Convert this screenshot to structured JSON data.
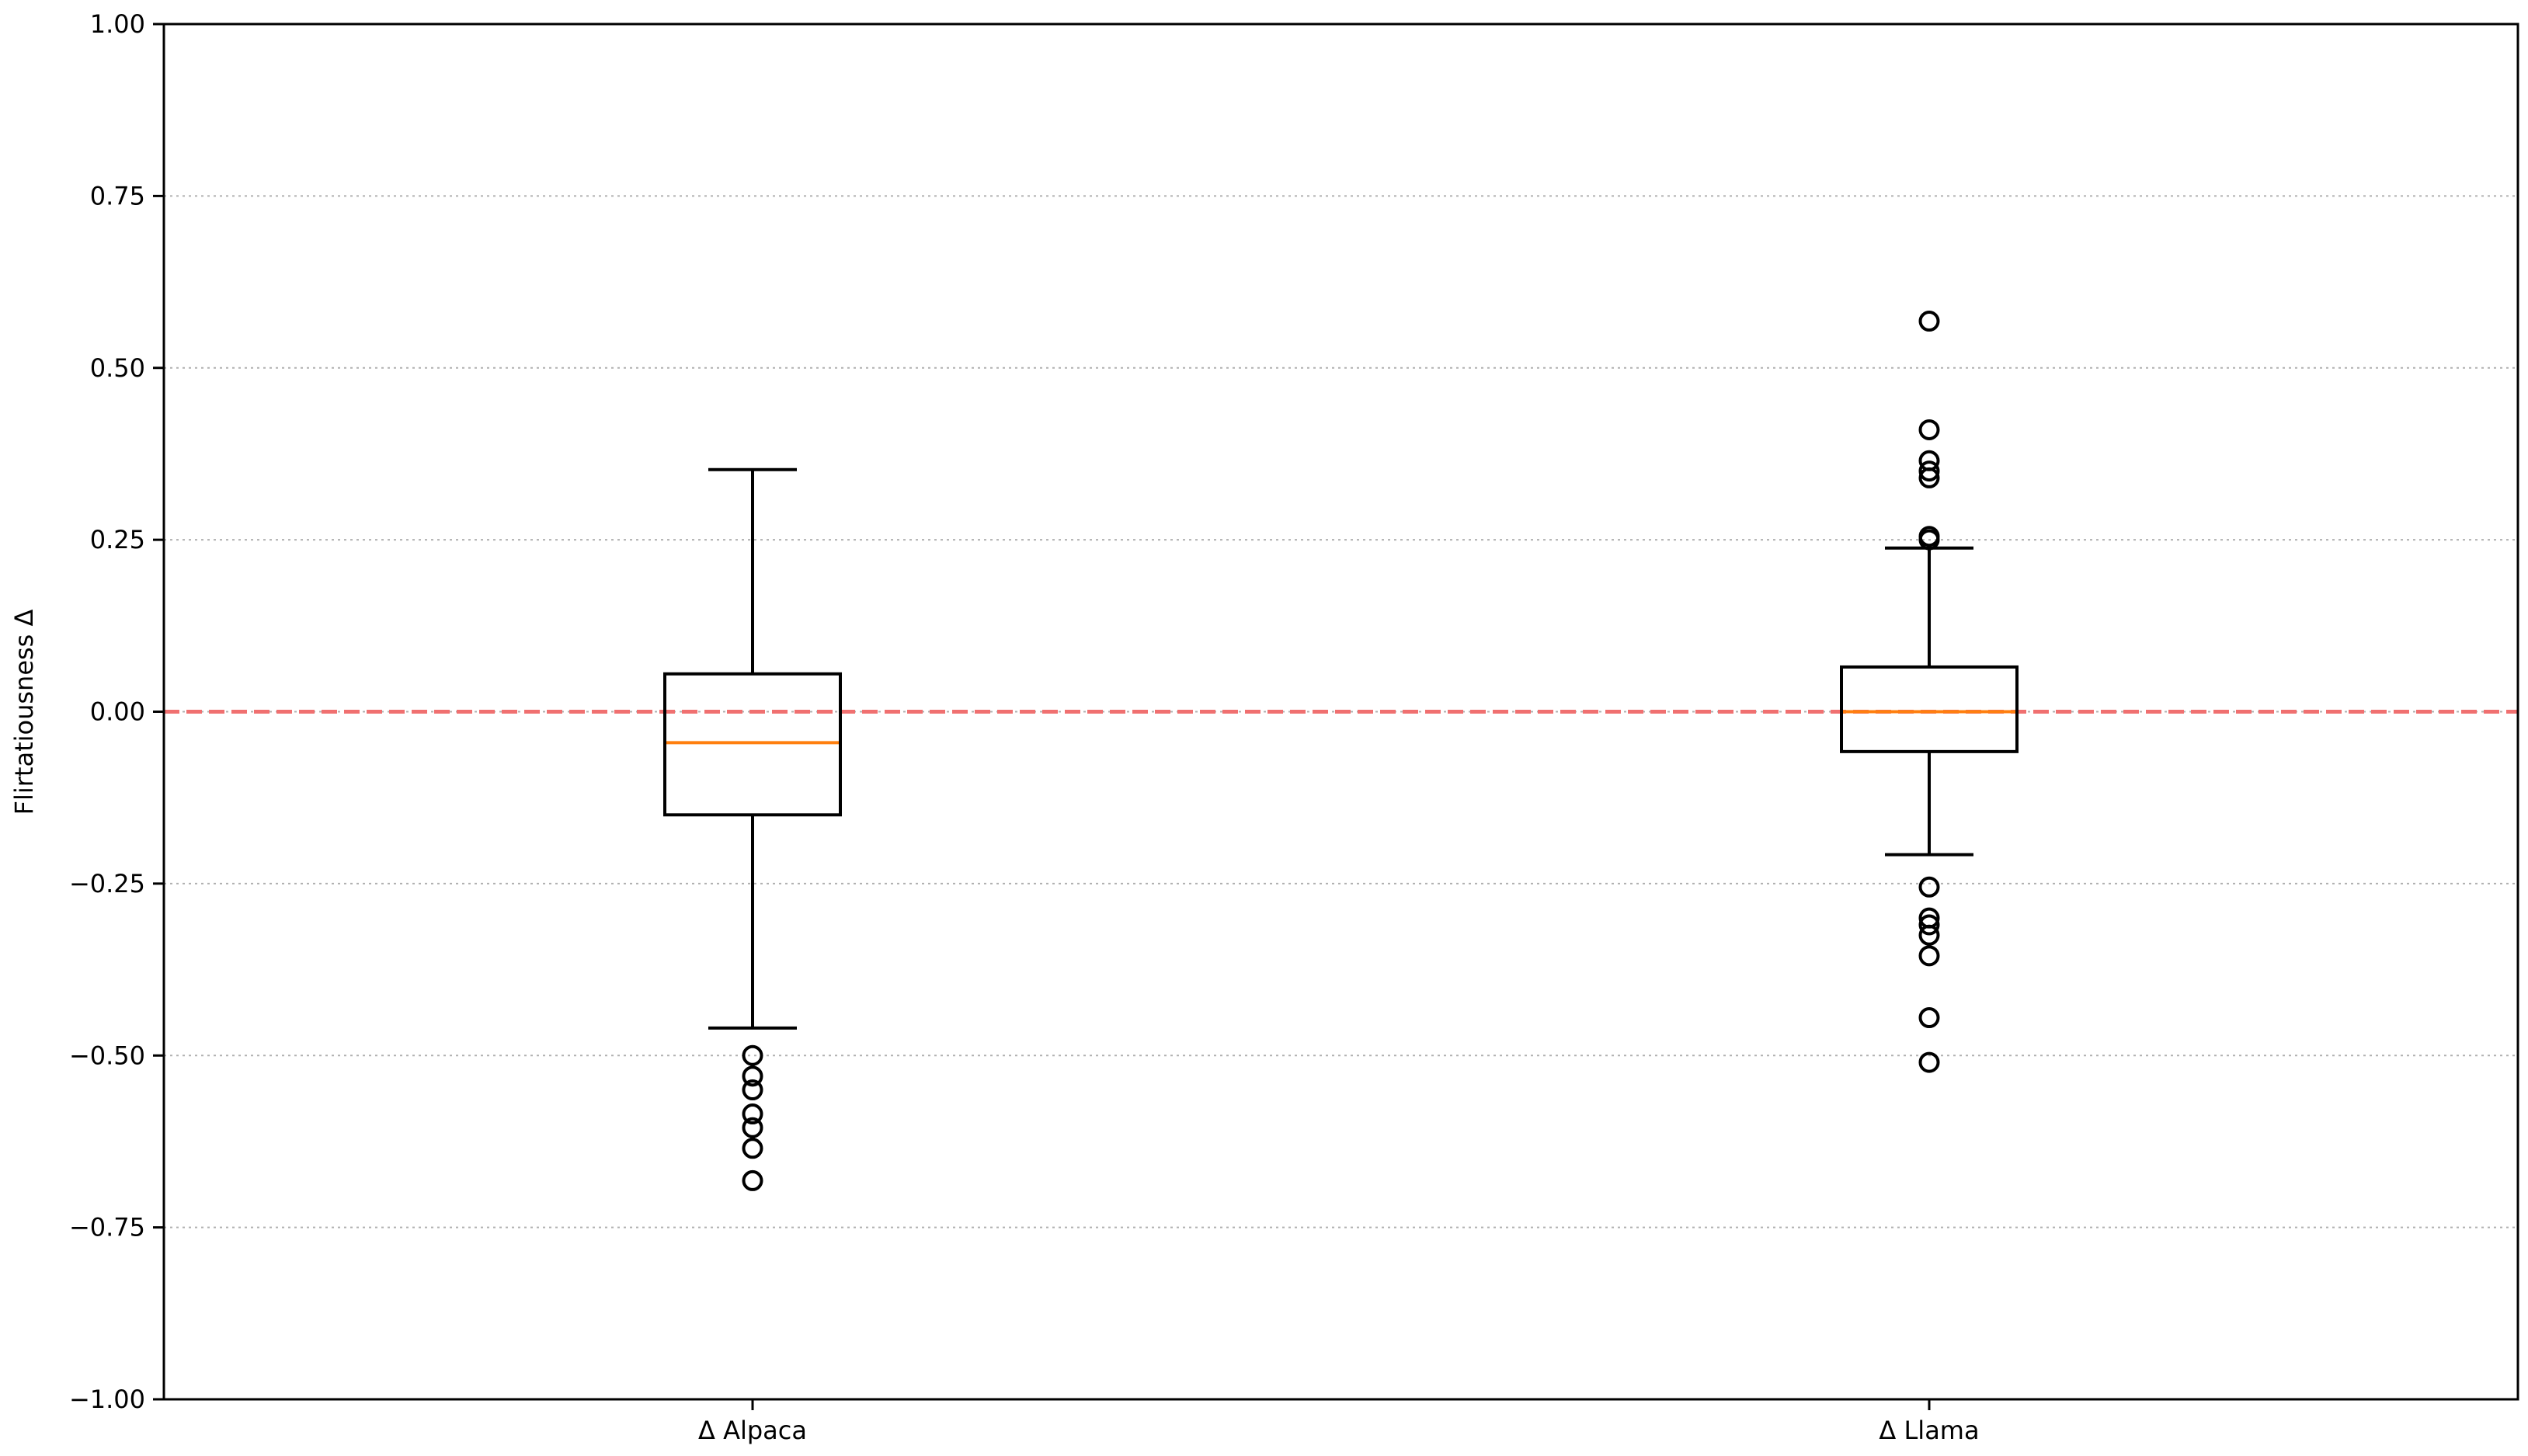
{
  "chart_data": {
    "type": "box",
    "title": "",
    "xlabel": "",
    "ylabel": "Flirtatiousness Δ",
    "ylim": [
      -1.0,
      1.0
    ],
    "yticks": [
      -1.0,
      -0.75,
      -0.5,
      -0.25,
      0.0,
      0.25,
      0.5,
      0.75,
      1.0
    ],
    "ytick_labels": [
      "−1.00",
      "−0.75",
      "−0.50",
      "−0.25",
      "0.00",
      "0.25",
      "0.50",
      "0.75",
      "1.00"
    ],
    "grid": "y-dotted",
    "reference_line": {
      "y": 0.0,
      "style": "dashed",
      "color": "#f07070"
    },
    "box_color": "#000000",
    "median_color": "#ff7f0e",
    "categories": [
      "Δ Alpaca",
      "Δ Llama"
    ],
    "boxes": [
      {
        "label": "Δ Alpaca",
        "whisker_low": -0.46,
        "q1": -0.15,
        "median": -0.045,
        "q3": 0.055,
        "whisker_high": 0.352,
        "outliers": [
          -0.5,
          -0.53,
          -0.55,
          -0.585,
          -0.605,
          -0.635,
          -0.682
        ]
      },
      {
        "label": "Δ Llama",
        "whisker_low": -0.208,
        "q1": -0.058,
        "median": 0.0,
        "q3": 0.065,
        "whisker_high": 0.238,
        "outliers": [
          0.568,
          0.41,
          0.365,
          0.35,
          0.34,
          0.255,
          0.25,
          -0.255,
          -0.3,
          -0.31,
          -0.325,
          -0.355,
          -0.445,
          -0.51
        ]
      }
    ]
  }
}
